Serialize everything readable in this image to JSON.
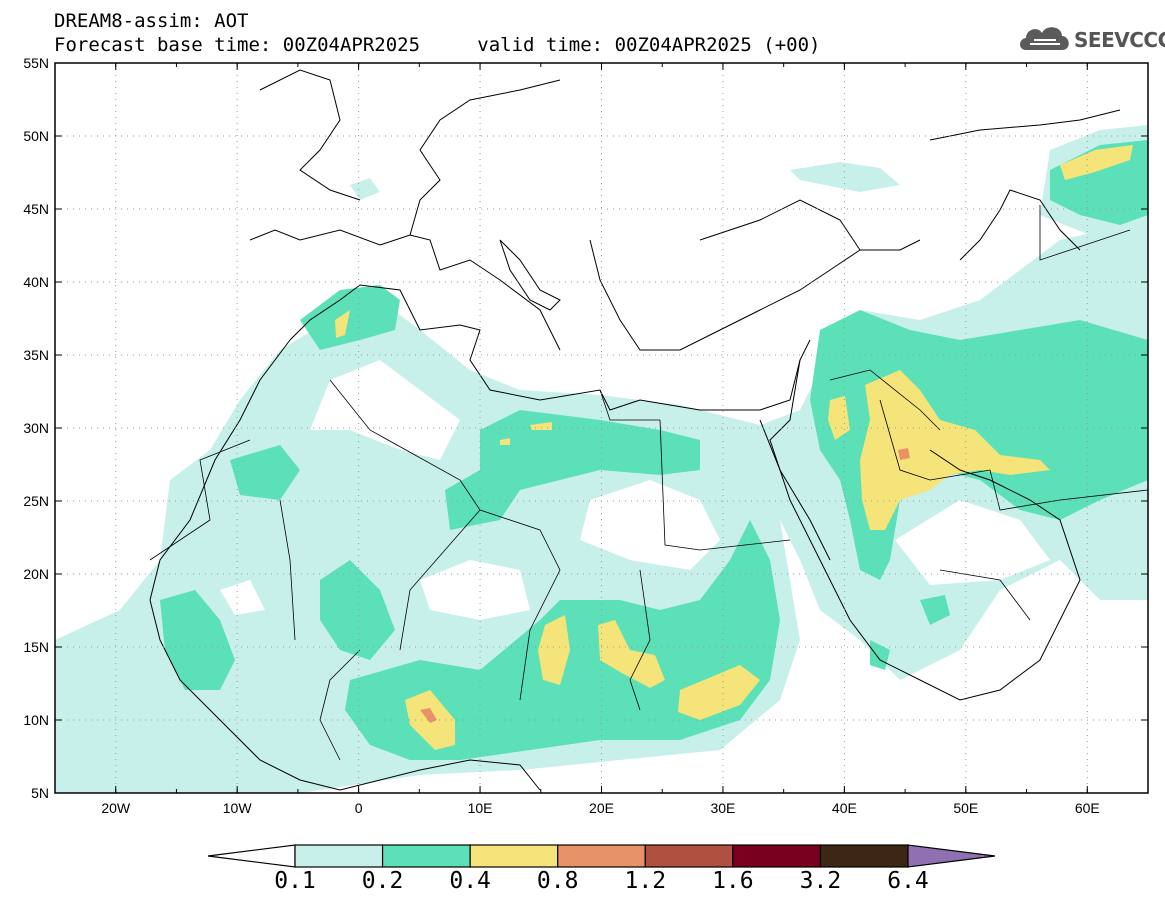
{
  "header": {
    "line1": "DREAM8-assim: AOT",
    "base_label": "Forecast base time:",
    "base_time": "00Z04APR2025",
    "valid_label": "valid time:",
    "valid_time": "00Z04APR2025 (+00)",
    "logo_text": "SEEVCCC",
    "logo_icon": "cloud-icon"
  },
  "map": {
    "projection": "lat-lon",
    "lon_range": [
      -25,
      65
    ],
    "lat_range": [
      5,
      55
    ],
    "grid": "dotted",
    "lat_ticks": [
      "55N",
      "50N",
      "45N",
      "40N",
      "35N",
      "30N",
      "25N",
      "20N",
      "15N",
      "10N",
      "5N"
    ],
    "lon_ticks": [
      "20W",
      "10W",
      "0",
      "10E",
      "20E",
      "30E",
      "40E",
      "50E",
      "60E"
    ]
  },
  "colorbar": {
    "levels": [
      "0.1",
      "0.2",
      "0.4",
      "0.8",
      "1.2",
      "1.6",
      "3.2",
      "6.4"
    ],
    "colors": [
      "#ffffff",
      "#c8f0ea",
      "#5ce0b8",
      "#f4e47a",
      "#e8926a",
      "#b05040",
      "#7a0020",
      "#3c2614",
      "#9070b0"
    ]
  }
}
